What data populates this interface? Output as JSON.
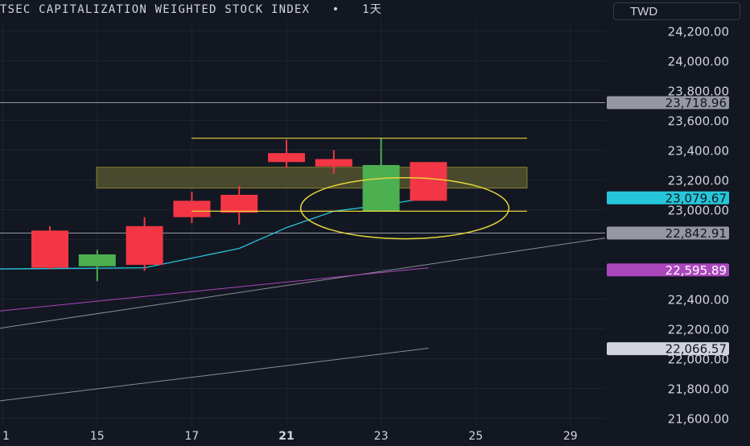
{
  "header": {
    "title": "TSEC CAPITALIZATION WEIGHTED STOCK INDEX",
    "separator": "•",
    "interval": "1天",
    "currency": "TWD"
  },
  "colors": {
    "background": "#131722",
    "up": "#4caf50",
    "down": "#f23645",
    "grid": "#1f2330",
    "axis_text": "#d1d4dc",
    "highlight_line": "#9598a1",
    "ma_short": "#26c6da",
    "ma_long": "#ab47bc",
    "annotation": "#e4d63b"
  },
  "chart_data": {
    "type": "candlestick",
    "title": "TSEC CAPITALIZATION WEIGHTED STOCK INDEX",
    "interval": "1天",
    "currency": "TWD",
    "x_tick_labels": [
      "1",
      "15",
      "17",
      "21",
      "23",
      "25",
      "29"
    ],
    "y_tick_labels": [
      "24,200.00",
      "24,000.00",
      "23,800.00",
      "23,600.00",
      "23,400.00",
      "23,200.00",
      "23,000.00",
      "22,400.00",
      "22,200.00",
      "22,000.00",
      "21,800.00",
      "21,600.00"
    ],
    "ylim": [
      21580,
      24290
    ],
    "candles": [
      {
        "x": 0,
        "open": 22860,
        "high": 22890,
        "low": 22600,
        "close": 22610
      },
      {
        "x": 1,
        "open": 22620,
        "high": 22730,
        "low": 22520,
        "close": 22700
      },
      {
        "x": 2,
        "open": 22890,
        "high": 22950,
        "low": 22590,
        "close": 22630
      },
      {
        "x": 3,
        "open": 23060,
        "high": 23120,
        "low": 22910,
        "close": 22950
      },
      {
        "x": 4,
        "open": 23100,
        "high": 23160,
        "low": 22900,
        "close": 22980
      },
      {
        "x": 5,
        "open": 23380,
        "high": 23470,
        "low": 23280,
        "close": 23320
      },
      {
        "x": 6,
        "open": 23340,
        "high": 23400,
        "low": 23240,
        "close": 23290
      },
      {
        "x": 7,
        "open": 22990,
        "high": 23480,
        "low": 22990,
        "close": 23300
      },
      {
        "x": 8,
        "open": 23320,
        "high": 23320,
        "low": 23060,
        "close": 23060
      }
    ],
    "moving_average_short": {
      "x": [
        -2,
        2,
        4,
        5,
        6,
        7,
        8
      ],
      "values": [
        22600,
        22610,
        22740,
        22880,
        22990,
        23030,
        23080
      ]
    },
    "moving_average_long": {
      "x": [
        -2,
        8
      ],
      "values": [
        22290,
        22610
      ]
    },
    "trend_line_upper": {
      "x": [
        -2,
        13
      ],
      "values": [
        22160,
        22870
      ]
    },
    "trend_line_lower": {
      "x": [
        -2,
        8
      ],
      "values": [
        21680,
        22070
      ]
    },
    "horizontal_levels": [
      23718.96,
      22842.91
    ],
    "annotation_lines": [
      23480,
      22990
    ],
    "annotation_zone": [
      23145,
      23285
    ],
    "annotation_ellipse": {
      "center_x": 7.5,
      "center_y": 23010,
      "rx_days": 2.2,
      "ry_value": 205
    },
    "price_labels": [
      {
        "value": 23718.96,
        "text": "23,718.96",
        "color": "#9598a1",
        "text_color": "#131722"
      },
      {
        "value": 23079.67,
        "text": "23,079.67",
        "color": "#26c6da",
        "text_color": "#131722"
      },
      {
        "value": 22842.91,
        "text": "22,842.91",
        "color": "#9598a1",
        "text_color": "#131722"
      },
      {
        "value": 22595.89,
        "text": "22,595.89",
        "color": "#ab47bc",
        "text_color": "#ffffff"
      },
      {
        "value": 22066.57,
        "text": "22,066.57",
        "color": "#d1d4dc",
        "text_color": "#131722"
      }
    ]
  }
}
